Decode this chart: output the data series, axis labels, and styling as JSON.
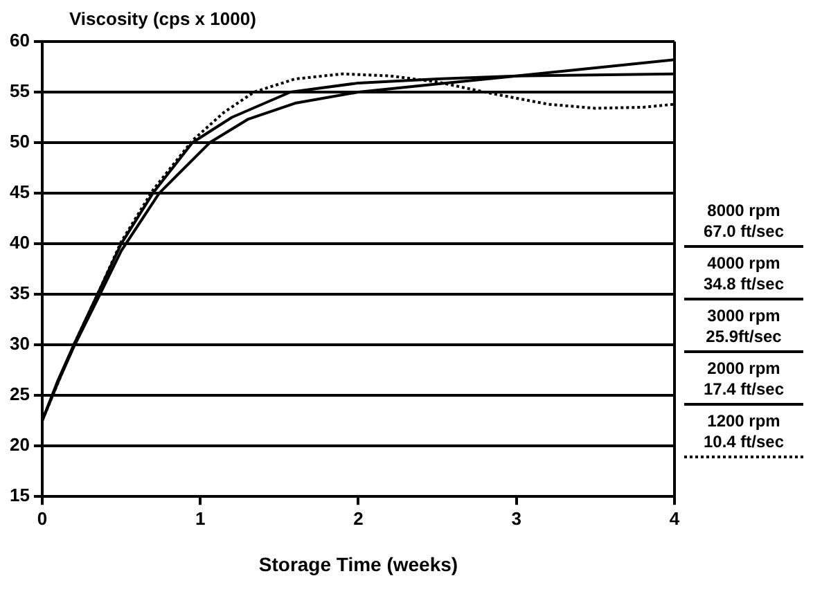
{
  "chart_data": {
    "type": "line",
    "ylabel": "Viscosity (cps x 1000)",
    "xlabel": "Storage Time (weeks)",
    "xlim": [
      0,
      4
    ],
    "xticks": [
      0,
      1,
      2,
      3,
      4
    ],
    "ylim": [
      15,
      60
    ],
    "yticks": [
      15,
      20,
      25,
      30,
      35,
      40,
      45,
      50,
      55,
      60
    ],
    "grid": "y",
    "legend": "right",
    "marker": "none",
    "series": [
      {
        "name": "8000 rpm\n67.0 ft/sec",
        "color": "#000000",
        "line_style": "solid",
        "x": [
          0,
          0.1,
          0.2,
          0.35,
          0.5,
          0.7,
          0.95,
          1.2,
          1.57,
          2,
          2.5,
          3,
          3.5,
          4
        ],
        "values": [
          22.5,
          26.5,
          30,
          35,
          40,
          45,
          50,
          52.5,
          55,
          55.9,
          56.3,
          56.6,
          56.7,
          56.8
        ]
      },
      {
        "name": "4000 rpm\n34.8 ft/sec",
        "color": "#000000",
        "line_style": "solid",
        "x": [
          0,
          0.1,
          0.2,
          0.35,
          0.5,
          0.74,
          1.06,
          1.3,
          1.6,
          2,
          2.5,
          3,
          3.5,
          4
        ],
        "values": [
          22.5,
          26.3,
          29.8,
          34.5,
          39.3,
          45,
          50,
          52.3,
          53.9,
          55,
          55.8,
          56.6,
          57.4,
          58.2
        ]
      },
      {
        "name": "3000 rpm\n25.9ft/sec",
        "color": "#000000",
        "line_style": "solid"
      },
      {
        "name": "2000 rpm\n17.4 ft/sec",
        "color": "#000000",
        "line_style": "solid"
      },
      {
        "name": "1200 rpm\n10.4 ft/sec",
        "color": "#000000",
        "line_style": "dotted",
        "x": [
          0,
          0.2,
          0.35,
          0.5,
          0.7,
          0.95,
          1.15,
          1.34,
          1.6,
          1.9,
          2.2,
          2.5,
          2.8,
          3.2,
          3.5,
          3.8,
          4
        ],
        "values": [
          22.5,
          30,
          35,
          40.2,
          45.3,
          50.2,
          53,
          55,
          56.3,
          56.8,
          56.6,
          56,
          55,
          53.8,
          53.4,
          53.5,
          53.8
        ]
      }
    ]
  }
}
